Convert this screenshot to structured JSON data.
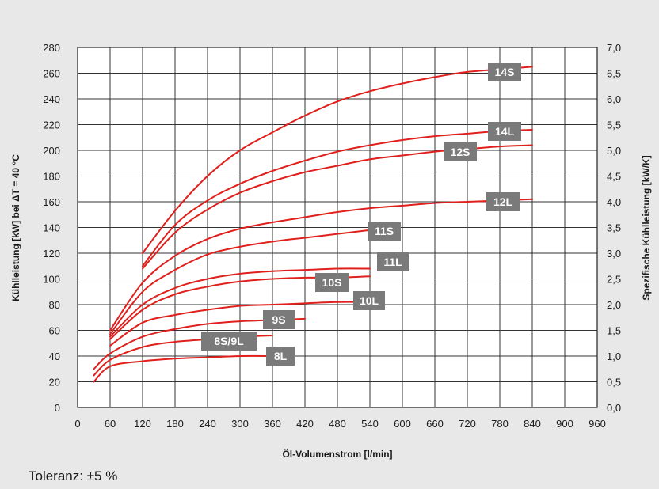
{
  "chart_data": {
    "type": "line",
    "xlabel": "Öl-Volumenstrom [l/min]",
    "ylabel": "Kühlleistung [kW] bei ΔT = 40 °C",
    "y2label": "Spezifische Kühlleistung [kW/K]",
    "xlim": [
      0,
      960
    ],
    "ylim": [
      0,
      280
    ],
    "y2lim": [
      0,
      7
    ],
    "xticks": [
      "0",
      "60",
      "120",
      "180",
      "240",
      "300",
      "360",
      "420",
      "480",
      "540",
      "600",
      "660",
      "720",
      "780",
      "840",
      "900",
      "960"
    ],
    "yticks": [
      "0",
      "20",
      "40",
      "60",
      "80",
      "100",
      "120",
      "140",
      "160",
      "180",
      "200",
      "220",
      "240",
      "260",
      "280"
    ],
    "y2ticks": [
      "0,0",
      "0,5",
      "1,0",
      "1,5",
      "2,0",
      "2,5",
      "3,0",
      "3,5",
      "4,0",
      "4,5",
      "5,0",
      "5,5",
      "6,0",
      "6,5",
      "7,0"
    ],
    "grid": true,
    "line_color": "#e0201c",
    "label_color": "#7a7a7a",
    "series": [
      {
        "name": "14S",
        "x": [
          120,
          180,
          240,
          300,
          360,
          420,
          480,
          540,
          600,
          660,
          720,
          780,
          840
        ],
        "y": [
          120,
          153,
          180,
          200,
          214,
          227,
          238,
          246,
          252,
          257,
          261,
          263,
          265
        ]
      },
      {
        "name": "14L",
        "x": [
          120,
          180,
          240,
          300,
          360,
          420,
          480,
          540,
          600,
          660,
          720,
          780,
          840
        ],
        "y": [
          110,
          142,
          161,
          174,
          184,
          192,
          199,
          204,
          208,
          211,
          213,
          215,
          216
        ]
      },
      {
        "name": "12S",
        "x": [
          120,
          180,
          240,
          300,
          360,
          420,
          480,
          540,
          600,
          660,
          720,
          780,
          840
        ],
        "y": [
          108,
          136,
          154,
          167,
          176,
          183,
          188,
          193,
          196,
          199,
          201,
          203,
          204
        ]
      },
      {
        "name": "12L",
        "x": [
          60,
          120,
          180,
          240,
          300,
          360,
          420,
          480,
          540,
          600,
          660,
          720,
          780,
          840
        ],
        "y": [
          60,
          97,
          118,
          131,
          139,
          144,
          148,
          152,
          155,
          157,
          159,
          160,
          161,
          162
        ]
      },
      {
        "name": "11S",
        "x": [
          60,
          120,
          180,
          240,
          300,
          360,
          420,
          480,
          540
        ],
        "y": [
          57,
          90,
          107,
          119,
          125,
          129,
          132,
          135,
          138
        ]
      },
      {
        "name": "11L",
        "x": [
          60,
          120,
          180,
          240,
          300,
          360,
          420,
          480,
          540
        ],
        "y": [
          55,
          80,
          93,
          100,
          104,
          106,
          107,
          108,
          108
        ]
      },
      {
        "name": "10S",
        "x": [
          60,
          120,
          180,
          240,
          300,
          360,
          420,
          480,
          540
        ],
        "y": [
          53,
          76,
          88,
          94,
          98,
          100,
          101,
          101,
          102
        ]
      },
      {
        "name": "10L",
        "x": [
          60,
          120,
          180,
          240,
          300,
          360,
          420,
          480,
          540
        ],
        "y": [
          48,
          66,
          72,
          76,
          79,
          80,
          81,
          82,
          82
        ]
      },
      {
        "name": "9S",
        "x": [
          30,
          60,
          120,
          180,
          240,
          300,
          360,
          420
        ],
        "y": [
          30,
          42,
          55,
          61,
          65,
          67,
          68,
          69
        ]
      },
      {
        "name": "8S/9L",
        "x": [
          30,
          60,
          120,
          180,
          240,
          300,
          360
        ],
        "y": [
          25,
          37,
          47,
          51,
          53,
          55,
          56
        ]
      },
      {
        "name": "8L",
        "x": [
          30,
          60,
          120,
          180,
          240,
          300,
          360
        ],
        "y": [
          20,
          32,
          36,
          38,
          39,
          40,
          40
        ]
      }
    ]
  },
  "footer": {
    "tolerance": "Toleranz: ±5 %"
  }
}
